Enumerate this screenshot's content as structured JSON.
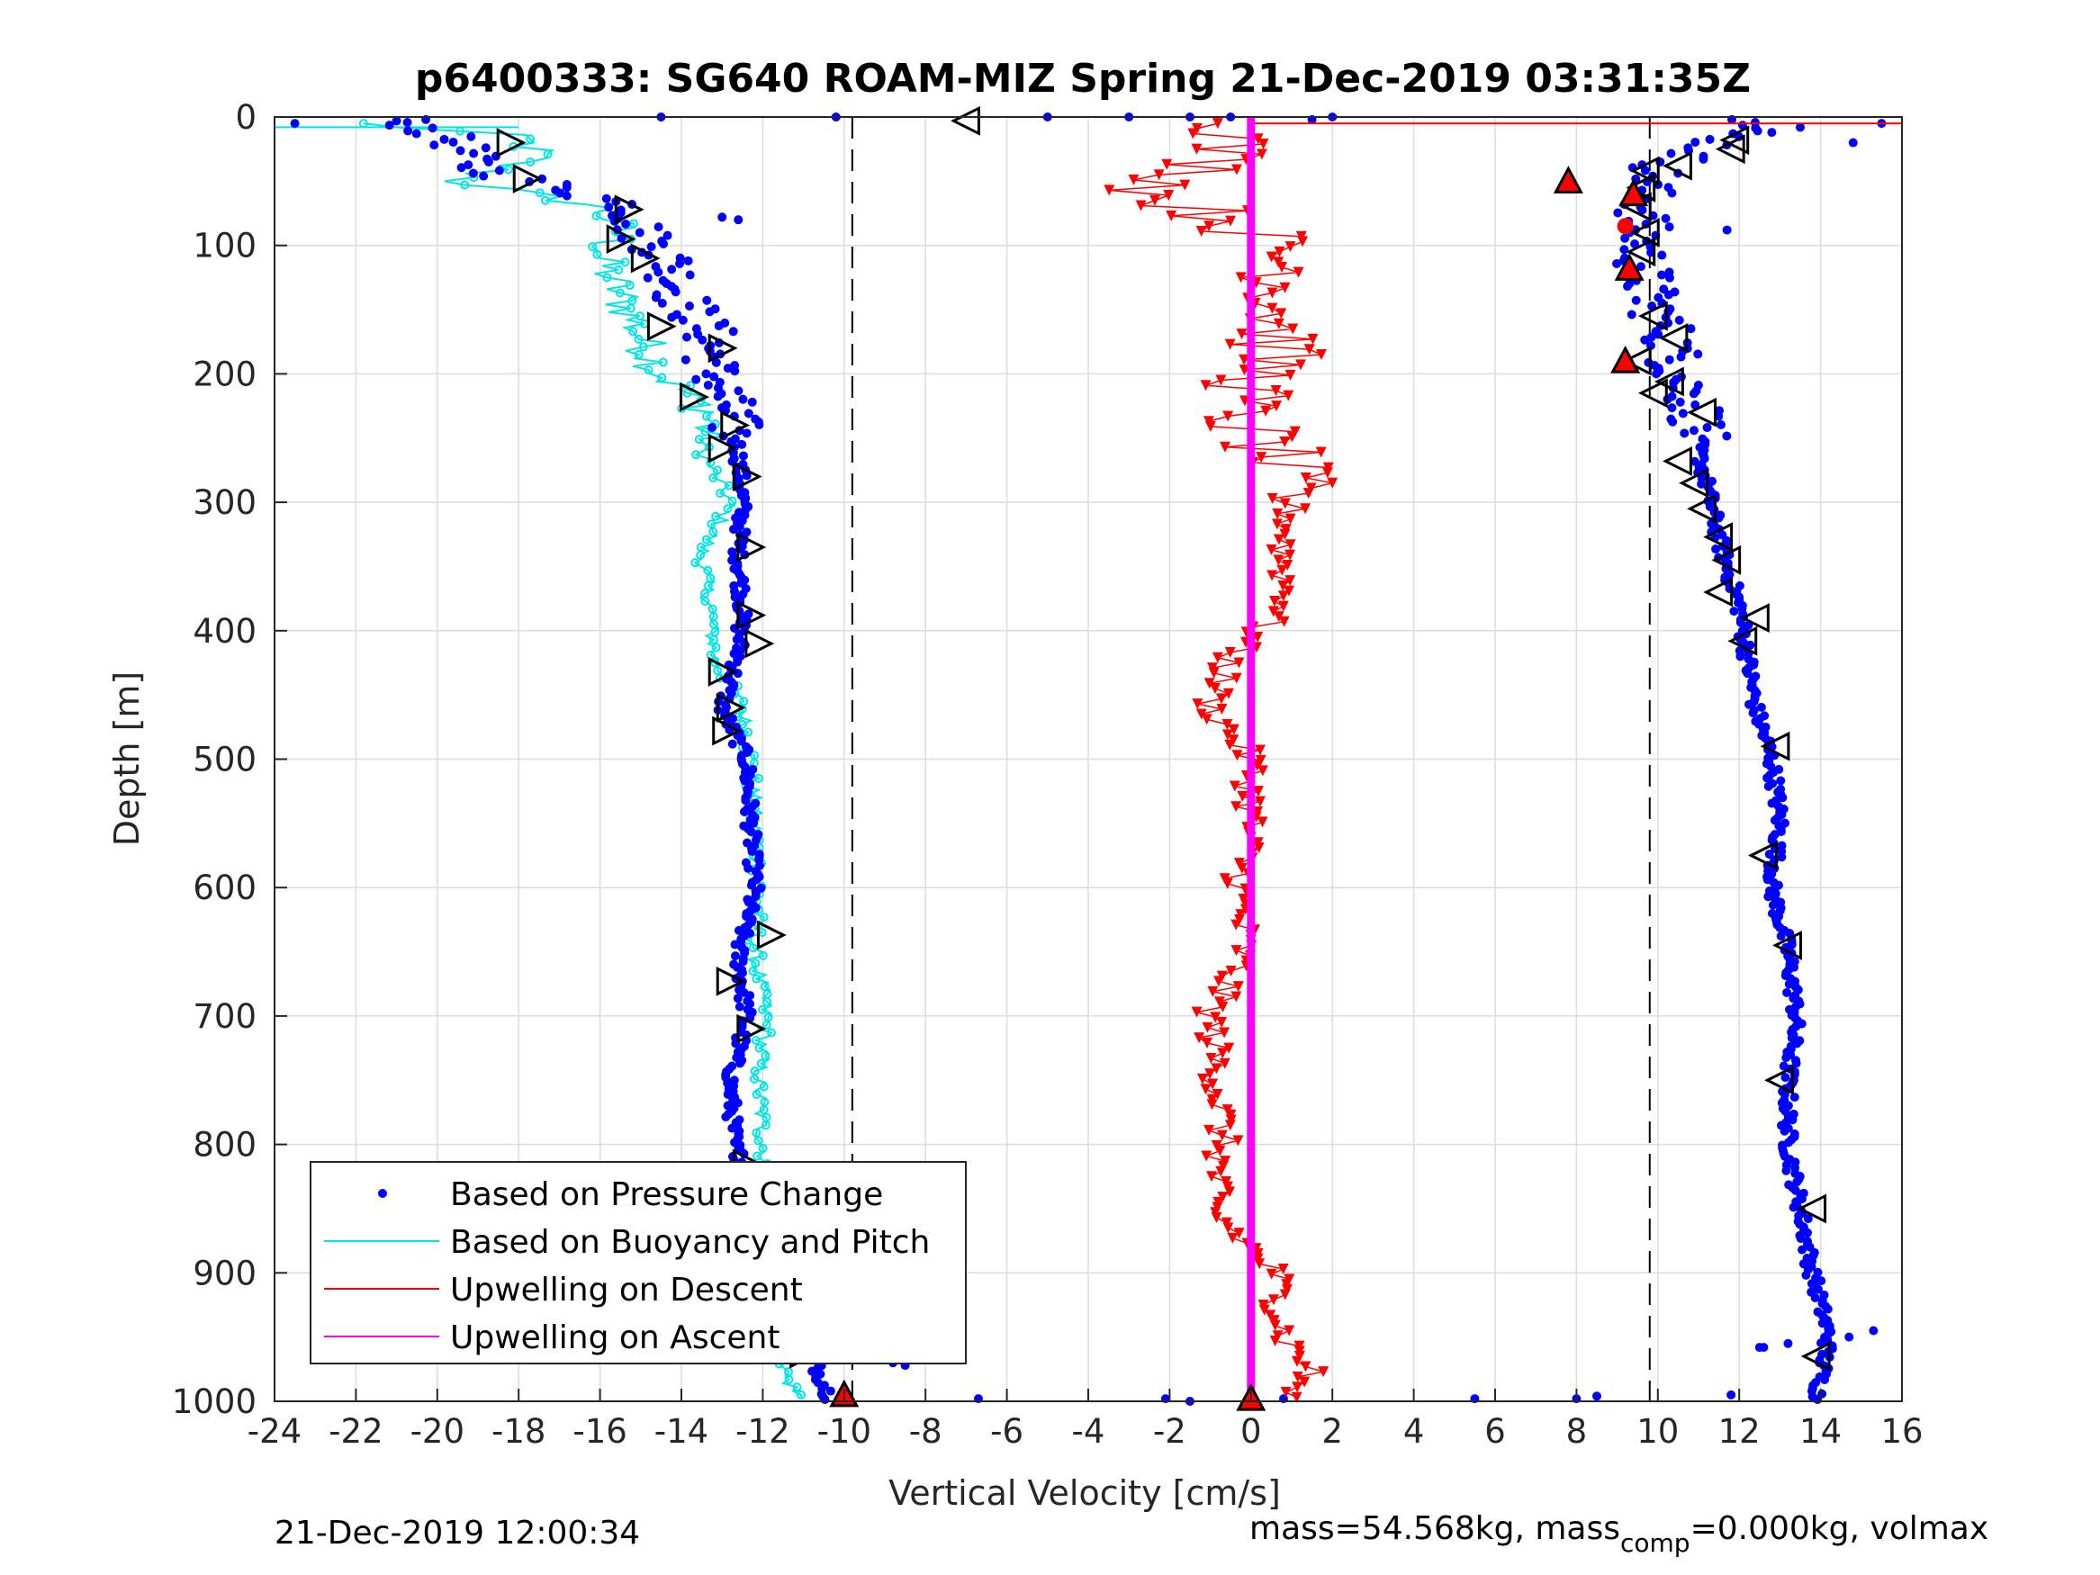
{
  "chart_data": {
    "type": "scatter",
    "title": "p6400333: SG640 ROAM-MIZ Spring 21-Dec-2019 03:31:35Z",
    "xlabel": "Vertical Velocity [cm/s]",
    "ylabel": "Depth [m]",
    "xlim": [
      -24,
      16
    ],
    "ylim": [
      0,
      1000
    ],
    "y_reversed": true,
    "grid": true,
    "xticks": [
      "-24",
      "-22",
      "-20",
      "-18",
      "-16",
      "-14",
      "-12",
      "-10",
      "-8",
      "-6",
      "-4",
      "-2",
      "0",
      "2",
      "4",
      "6",
      "8",
      "10",
      "12",
      "14",
      "16"
    ],
    "yticks": [
      "0",
      "100",
      "200",
      "300",
      "400",
      "500",
      "600",
      "700",
      "800",
      "900",
      "1000"
    ],
    "reference_lines_x": [
      -9.8,
      9.8
    ],
    "legend": {
      "position": "bottom-left",
      "entries": [
        {
          "label": "Based on Pressure Change",
          "color": "#0000ff",
          "marker": "dot"
        },
        {
          "label": "Based on Buoyancy and Pitch",
          "color": "#00e5e5",
          "marker": "line"
        },
        {
          "label": "Upwelling on Descent",
          "color": "#ff0000",
          "marker": "line"
        },
        {
          "label": "Upwelling on Ascent",
          "color": "#ff00ff",
          "marker": "line"
        }
      ]
    },
    "series": [
      {
        "name": "Based on Pressure Change",
        "role": "descent",
        "color": "#0000ff",
        "depth": [
          0,
          20,
          40,
          55,
          70,
          90,
          110,
          140,
          170,
          200,
          230,
          260,
          300,
          340,
          380,
          420,
          460,
          500,
          550,
          600,
          650,
          700,
          750,
          800,
          850,
          900,
          950,
          1000
        ],
        "values": [
          -21,
          -19.5,
          -19,
          -17,
          -15.2,
          -15,
          -14.3,
          -14,
          -13.3,
          -13.2,
          -12.8,
          -12.6,
          -12.5,
          -12.6,
          -12.5,
          -12.6,
          -13,
          -12.4,
          -12.3,
          -12.2,
          -12.6,
          -12.4,
          -12.8,
          -12.7,
          -12,
          -11.7,
          -11,
          -10.3
        ]
      },
      {
        "name": "Based on Pressure Change",
        "role": "ascent",
        "color": "#0000ff",
        "depth": [
          0,
          20,
          40,
          60,
          90,
          110,
          140,
          170,
          200,
          230,
          260,
          300,
          340,
          380,
          420,
          460,
          500,
          550,
          600,
          650,
          700,
          750,
          800,
          850,
          900,
          950,
          1000
        ],
        "values": [
          12.5,
          11.5,
          10,
          9.7,
          9.6,
          9.6,
          9.8,
          10.3,
          10.5,
          11,
          11,
          11.3,
          11.6,
          12,
          12.2,
          12.4,
          12.8,
          13,
          12.8,
          13.2,
          13.4,
          13.2,
          13.2,
          13.5,
          13.8,
          14.2,
          13.9
        ]
      },
      {
        "name": "Based on Buoyancy and Pitch",
        "color": "#00e5e5",
        "depth": [
          0,
          15,
          30,
          50,
          70,
          90,
          110,
          140,
          170,
          200,
          230,
          260,
          300,
          340,
          380,
          420,
          460,
          500,
          550,
          600,
          650,
          700,
          750,
          800,
          850,
          900,
          950,
          980,
          1000
        ],
        "values": [
          -24,
          -18,
          -17.5,
          -19.5,
          -16,
          -15.5,
          -16,
          -15.5,
          -15,
          -14.5,
          -13.3,
          -13.5,
          -12.8,
          -13.5,
          -13.3,
          -13.2,
          -12.5,
          -12.3,
          -12.2,
          -12.1,
          -12.2,
          -11.9,
          -12.1,
          -12,
          -11.8,
          -12,
          -12.1,
          -11.5,
          -11
        ]
      },
      {
        "name": "Upwelling on Descent",
        "color": "#ff0000",
        "depth": [
          5,
          20,
          40,
          60,
          80,
          100,
          120,
          150,
          180,
          200,
          230,
          260,
          300,
          340,
          380,
          420,
          460,
          500,
          550,
          600,
          650,
          700,
          750,
          800,
          850,
          900,
          950,
          975,
          1000
        ],
        "values": [
          0,
          -0.5,
          -1,
          -2.5,
          -0.5,
          0.5,
          1,
          0.8,
          0.6,
          0.3,
          -0.5,
          0.5,
          1,
          0.8,
          0.9,
          -0.5,
          -1,
          0,
          0,
          -0.3,
          -0.2,
          -1,
          -0.8,
          -0.7,
          -1,
          0.6,
          0.8,
          1.5,
          0.8
        ]
      },
      {
        "name": "Upwelling on Ascent",
        "color": "#ff00ff",
        "depth": [
          0,
          1000
        ],
        "values": [
          0,
          0
        ]
      }
    ],
    "markers": {
      "descent_triangles": [
        {
          "x": -18.2,
          "y": 20
        },
        {
          "x": -17.8,
          "y": 48
        },
        {
          "x": -15.3,
          "y": 72
        },
        {
          "x": -15.5,
          "y": 95
        },
        {
          "x": -14.9,
          "y": 110
        },
        {
          "x": -14.5,
          "y": 163
        },
        {
          "x": -13,
          "y": 180
        },
        {
          "x": -13.7,
          "y": 218
        },
        {
          "x": -12.7,
          "y": 240
        },
        {
          "x": -13,
          "y": 258
        },
        {
          "x": -12.4,
          "y": 280
        },
        {
          "x": -12.3,
          "y": 335
        },
        {
          "x": -12.3,
          "y": 388
        },
        {
          "x": -12.1,
          "y": 410
        },
        {
          "x": -13,
          "y": 432
        },
        {
          "x": -12.8,
          "y": 460
        },
        {
          "x": -12.9,
          "y": 478
        },
        {
          "x": -11.8,
          "y": 637
        },
        {
          "x": -12.8,
          "y": 673
        },
        {
          "x": -12.3,
          "y": 710
        },
        {
          "x": -12.4,
          "y": 815
        },
        {
          "x": -11.3,
          "y": 878
        },
        {
          "x": -11,
          "y": 963
        }
      ],
      "ascent_triangles": [
        {
          "x": 11.9,
          "y": 18
        },
        {
          "x": 11.8,
          "y": 25
        },
        {
          "x": 10.5,
          "y": 38
        },
        {
          "x": 9.7,
          "y": 42
        },
        {
          "x": 9.6,
          "y": 55
        },
        {
          "x": 9.5,
          "y": 70
        },
        {
          "x": 9.7,
          "y": 90
        },
        {
          "x": 9.6,
          "y": 105
        },
        {
          "x": 9.9,
          "y": 155
        },
        {
          "x": 10.4,
          "y": 172
        },
        {
          "x": 9.5,
          "y": 190
        },
        {
          "x": 10.3,
          "y": 206
        },
        {
          "x": 9.9,
          "y": 215
        },
        {
          "x": 11.1,
          "y": 230
        },
        {
          "x": 10.5,
          "y": 268
        },
        {
          "x": 10.9,
          "y": 285
        },
        {
          "x": 11.1,
          "y": 305
        },
        {
          "x": 11.5,
          "y": 327
        },
        {
          "x": 11.7,
          "y": 345
        },
        {
          "x": 11.5,
          "y": 370
        },
        {
          "x": 12.4,
          "y": 390
        },
        {
          "x": 12.1,
          "y": 408
        },
        {
          "x": 12.9,
          "y": 490
        },
        {
          "x": 12.6,
          "y": 575
        },
        {
          "x": 13.2,
          "y": 645
        },
        {
          "x": 13,
          "y": 750
        },
        {
          "x": 13.8,
          "y": 850
        },
        {
          "x": 13.9,
          "y": 965
        }
      ],
      "red_triangles": [
        {
          "x": 7.8,
          "y": 50
        },
        {
          "x": 9.4,
          "y": 60
        },
        {
          "x": 9.3,
          "y": 118
        },
        {
          "x": 9.2,
          "y": 190
        },
        {
          "x": -10,
          "y": 995
        },
        {
          "x": 0,
          "y": 998
        }
      ],
      "outlier_left_triangle": {
        "x": -7,
        "y": 3
      }
    }
  },
  "footer": {
    "left": "21-Dec-2019 12:00:34",
    "right_prefix": "mass=54.568kg, mass",
    "right_sub": "comp",
    "right_suffix": "=0.000kg, volmax"
  }
}
